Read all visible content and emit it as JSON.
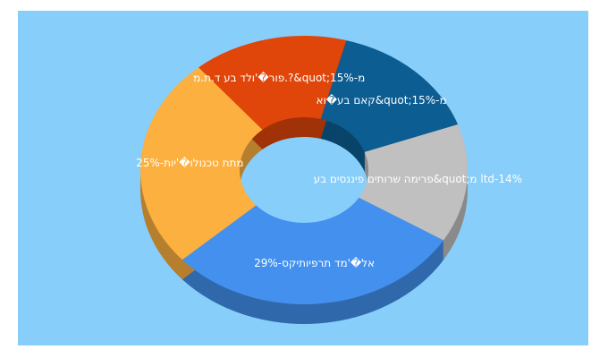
{
  "chart_data": {
    "type": "donut3d",
    "values": [
      15,
      14,
      29,
      25,
      15
    ],
    "value_labels": [
      "קאם בע�וא&quot;15%-מ",
      "פרימה שרותים פיננסים בע&quot;מ ltd-14%",
      "אל�'מד תרפיותיקס-29%",
      "מתת טכנולו�'יות-25%",
      "פור�'ולד בע ד.ת.מ.?&quot;15%-מ"
    ],
    "colors": [
      "#0b5d92",
      "#c0c0c0",
      "#4390ef",
      "#fbb040",
      "#e0450a"
    ],
    "background": "#87cefa"
  }
}
